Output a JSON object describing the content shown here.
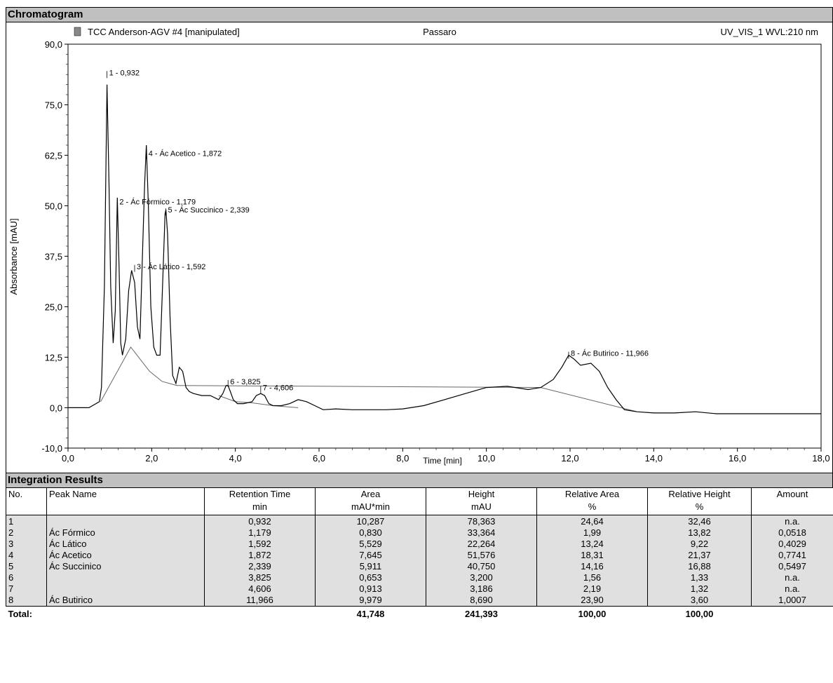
{
  "sections": {
    "chromatogram": "Chromatogram",
    "integration": "Integration Results"
  },
  "chart_data": {
    "type": "line",
    "header_left": "TCC Anderson-AGV #4 [manipulated]",
    "header_center": "Passaro",
    "header_right": "UV_VIS_1 WVL:210 nm",
    "xlabel": "Time [min]",
    "ylabel": "Absorbance [mAU]",
    "xlim": [
      0,
      18
    ],
    "ylim": [
      -10,
      90
    ],
    "x_ticks": [
      "0,0",
      "2,0",
      "4,0",
      "6,0",
      "8,0",
      "10,0",
      "12,0",
      "14,0",
      "16,0",
      "18,0"
    ],
    "x_tick_values": [
      0,
      2,
      4,
      6,
      8,
      10,
      12,
      14,
      16,
      18
    ],
    "y_ticks": [
      "-10,0",
      "0,0",
      "12,5",
      "25,0",
      "37,5",
      "50,0",
      "62,5",
      "75,0",
      "90,0"
    ],
    "y_tick_values": [
      -10,
      0,
      12.5,
      25,
      37.5,
      50,
      62.5,
      75,
      90
    ],
    "series": [
      {
        "x": [
          0,
          0.5,
          0.75,
          0.8,
          0.87,
          0.932,
          0.98,
          1.02,
          1.08,
          1.13,
          1.179,
          1.22,
          1.26,
          1.3,
          1.38,
          1.45,
          1.52,
          1.592,
          1.66,
          1.72,
          1.78,
          1.83,
          1.872,
          1.92,
          1.98,
          2.05,
          2.12,
          2.2,
          2.26,
          2.32,
          2.339,
          2.38,
          2.44,
          2.5,
          2.58,
          2.66,
          2.74,
          2.82,
          2.9,
          3.0,
          3.2,
          3.4,
          3.6,
          3.7,
          3.78,
          3.825,
          3.88,
          3.95,
          4.05,
          4.2,
          4.4,
          4.5,
          4.606,
          4.7,
          4.8,
          4.9,
          5.1,
          5.3,
          5.5,
          5.7,
          5.9,
          6.1,
          6.4,
          6.8,
          7.2,
          7.6,
          8.0,
          8.5,
          9.0,
          9.5,
          10.0,
          10.5,
          11.0,
          11.3,
          11.6,
          11.8,
          11.966,
          12.1,
          12.25,
          12.5,
          12.7,
          12.9,
          13.1,
          13.3,
          13.6,
          14.0,
          14.5,
          15.0,
          15.5,
          16.0,
          17.0,
          18.0
        ],
        "y": [
          0,
          0,
          1.5,
          5,
          30,
          80,
          55,
          30,
          16,
          24,
          52,
          35,
          16,
          13,
          17,
          29,
          34,
          31,
          20,
          17,
          38,
          55,
          65,
          50,
          25,
          15,
          13,
          13,
          30,
          48,
          49,
          43,
          22,
          8,
          6,
          10,
          9,
          5,
          4,
          3.5,
          3,
          3,
          2,
          3.5,
          5.5,
          5.5,
          4,
          2,
          1,
          1,
          1.5,
          3,
          3.5,
          3,
          1,
          0.5,
          0.5,
          1,
          2,
          1.5,
          0.5,
          -0.5,
          -0.3,
          -0.5,
          -0.5,
          -0.5,
          -0.3,
          0.5,
          2,
          3.5,
          5,
          5.3,
          4.5,
          5,
          7,
          10,
          13,
          12,
          10.5,
          11,
          9,
          5,
          2,
          -0.5,
          -1,
          -1.3,
          -1.3,
          -1,
          -1.5,
          -1.5,
          -1.5,
          -1.5
        ]
      }
    ],
    "peak_labels": [
      {
        "x": 0.932,
        "y": 83,
        "text": "1 - 0,932"
      },
      {
        "x": 1.179,
        "y": 51,
        "text": "2 - Ác Fórmico - 1,179"
      },
      {
        "x": 1.592,
        "y": 35,
        "text": "3 - Ác Lático - 1,592"
      },
      {
        "x": 1.872,
        "y": 63,
        "text": "4 - Ác Acetico - 1,872"
      },
      {
        "x": 2.339,
        "y": 49,
        "text": "5 - Ác Succinico - 2,339"
      },
      {
        "x": 3.825,
        "y": 6.5,
        "text": "6 - 3,825"
      },
      {
        "x": 4.606,
        "y": 5,
        "text": "7 - 4,606"
      },
      {
        "x": 11.966,
        "y": 13.5,
        "text": "8 - Ác Butirico - 11,966"
      }
    ]
  },
  "table": {
    "headers": [
      {
        "top": "No.",
        "sub": ""
      },
      {
        "top": "Peak Name",
        "sub": ""
      },
      {
        "top": "Retention Time",
        "sub": "min"
      },
      {
        "top": "Area",
        "sub": "mAU*min"
      },
      {
        "top": "Height",
        "sub": "mAU"
      },
      {
        "top": "Relative Area",
        "sub": "%"
      },
      {
        "top": "Relative Height",
        "sub": "%"
      },
      {
        "top": "Amount",
        "sub": ""
      }
    ],
    "rows": [
      [
        "1",
        "",
        "0,932",
        "10,287",
        "78,363",
        "24,64",
        "32,46",
        "n.a."
      ],
      [
        "2",
        "Ác Fórmico",
        "1,179",
        "0,830",
        "33,364",
        "1,99",
        "13,82",
        "0,0518"
      ],
      [
        "3",
        "Ác Lático",
        "1,592",
        "5,529",
        "22,264",
        "13,24",
        "9,22",
        "0,4029"
      ],
      [
        "4",
        "Ác Acetico",
        "1,872",
        "7,645",
        "51,576",
        "18,31",
        "21,37",
        "0,7741"
      ],
      [
        "5",
        "Ác Succinico",
        "2,339",
        "5,911",
        "40,750",
        "14,16",
        "16,88",
        "0,5497"
      ],
      [
        "6",
        "",
        "3,825",
        "0,653",
        "3,200",
        "1,56",
        "1,33",
        "n.a."
      ],
      [
        "7",
        "",
        "4,606",
        "0,913",
        "3,186",
        "2,19",
        "1,32",
        "n.a."
      ],
      [
        "8",
        "Ác Butirico",
        "11,966",
        "9,979",
        "8,690",
        "23,90",
        "3,60",
        "1,0007"
      ]
    ],
    "total": {
      "label": "Total:",
      "area": "41,748",
      "height": "241,393",
      "rel_area": "100,00",
      "rel_height": "100,00"
    }
  }
}
